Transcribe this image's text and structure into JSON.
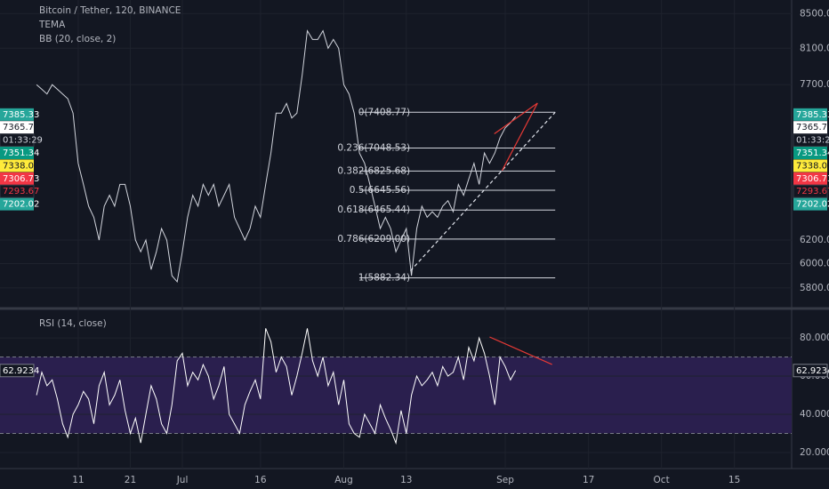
{
  "chart_data": [
    {
      "type": "line",
      "title": "Bitcoin / Tether, 120, BINANCE",
      "indicators": [
        "TEMA",
        "BB (20, close, 2)"
      ],
      "log_scale": true,
      "grid": true,
      "xlim": [
        1.3,
        147
      ],
      "ylim": [
        5650,
        8610
      ],
      "xticks": [
        {
          "value": 10,
          "label": "11"
        },
        {
          "value": 20,
          "label": "21"
        },
        {
          "value": 30,
          "label": "Jul"
        },
        {
          "value": 45,
          "label": "16"
        },
        {
          "value": 61,
          "label": "Aug"
        },
        {
          "value": 73,
          "label": "13"
        },
        {
          "value": 92,
          "label": "Sep"
        },
        {
          "value": 108,
          "label": "17"
        },
        {
          "value": 122,
          "label": "Oct"
        },
        {
          "value": 136,
          "label": "15"
        }
      ],
      "yticks": [
        {
          "value": 8500,
          "label": "8500.00"
        },
        {
          "value": 8100,
          "label": "8100.00"
        },
        {
          "value": 7700,
          "label": "7700.00"
        },
        {
          "value": 6200,
          "label": "6200.00"
        },
        {
          "value": 6000,
          "label": "6000.00"
        },
        {
          "value": 5800,
          "label": "5800.00"
        }
      ],
      "x": [
        2,
        3,
        4,
        5,
        6,
        7,
        8,
        9,
        10,
        11,
        12,
        13,
        14,
        15,
        16,
        17,
        18,
        19,
        20,
        21,
        22,
        23,
        24,
        25,
        26,
        27,
        28,
        29,
        30,
        31,
        32,
        33,
        34,
        35,
        36,
        37,
        38,
        39,
        40,
        41,
        42,
        43,
        44,
        45,
        46,
        47,
        48,
        49,
        50,
        51,
        52,
        53,
        54,
        55,
        56,
        57,
        58,
        59,
        60,
        61,
        62,
        63,
        64,
        65,
        66,
        67,
        68,
        69,
        70,
        71,
        72,
        73,
        74,
        75,
        76,
        77,
        78,
        79,
        80,
        81,
        82,
        83,
        84,
        85,
        86,
        87,
        88,
        89,
        90,
        91,
        92,
        93,
        94
      ],
      "series": [
        {
          "name": "Bitcoin / Tether",
          "color": "#d1d4dc",
          "values": [
            7700,
            7650,
            7600,
            7700,
            7650,
            7600,
            7550,
            7400,
            6900,
            6700,
            6500,
            6400,
            6200,
            6500,
            6600,
            6500,
            6700,
            6700,
            6500,
            6200,
            6100,
            6200,
            5950,
            6100,
            6300,
            6200,
            5900,
            5850,
            6100,
            6400,
            6600,
            6500,
            6700,
            6600,
            6700,
            6500,
            6600,
            6700,
            6400,
            6300,
            6200,
            6300,
            6500,
            6400,
            6700,
            7000,
            7400,
            7400,
            7500,
            7350,
            7400,
            7800,
            8300,
            8200,
            8200,
            8300,
            8100,
            8200,
            8100,
            7700,
            7600,
            7400,
            7000,
            6900,
            6700,
            6500,
            6300,
            6400,
            6300,
            6100,
            6200,
            6300,
            5900,
            6300,
            6500,
            6400,
            6450,
            6400,
            6500,
            6550,
            6450,
            6700,
            6600,
            6750,
            6900,
            6700,
            7000,
            6900,
            7000,
            7150,
            7250,
            7300,
            7365.72
          ]
        }
      ],
      "fib_levels": [
        {
          "value": 7408.77,
          "label": "0(7408.77)"
        },
        {
          "value": 7048.53,
          "label": "0.236(7048.53)"
        },
        {
          "value": 6825.68,
          "label": "0.382(6825.68)"
        },
        {
          "value": 6645.56,
          "label": "0.5(6645.56)"
        },
        {
          "value": 6465.44,
          "label": "0.618(6465.44)"
        },
        {
          "value": 6209.0,
          "label": "0.786(6209.00)"
        },
        {
          "value": 5882.34,
          "label": "1(5882.34)"
        }
      ],
      "fib_x": [
        64,
        101.6
      ],
      "trendlines": [
        {
          "color": "#e0e3eb",
          "dashed": true,
          "x": [
            73.8,
            101.6
          ],
          "y": [
            5940,
            7409
          ]
        },
        {
          "color": "#e53935",
          "dashed": false,
          "x": [
            89.9,
            98.2
          ],
          "y": [
            7190,
            7504
          ]
        },
        {
          "color": "#e53935",
          "dashed": false,
          "x": [
            91.4,
            98.2
          ],
          "y": [
            6831,
            7504
          ]
        }
      ],
      "price_labels": [
        {
          "value": 7385.33,
          "color": "#26a69a"
        },
        {
          "value": 7365.72,
          "color": "#ffffff"
        },
        {
          "value": 7351.34,
          "color": "#089981"
        },
        {
          "value": 7338.02,
          "color": "#ffeb3b"
        },
        {
          "value": 7306.73,
          "color": "#f23645"
        },
        {
          "value": 7293.67,
          "color": "#131722"
        },
        {
          "value": 7202.02,
          "color": "#26a69a"
        }
      ],
      "countdown": "01:33:29"
    },
    {
      "type": "line",
      "title": "RSI (14, close)",
      "xlim": [
        1.3,
        147
      ],
      "ylim": [
        11.6,
        94
      ],
      "yticks": [
        {
          "value": 20,
          "label": "20.0000"
        },
        {
          "value": 40,
          "label": "40.0000"
        },
        {
          "value": 60,
          "label": "60.0000"
        },
        {
          "value": 80,
          "label": "80.0000"
        }
      ],
      "band": [
        30,
        70
      ],
      "band_color": "#2a1f4e",
      "x": [
        2,
        3,
        4,
        5,
        6,
        7,
        8,
        9,
        10,
        11,
        12,
        13,
        14,
        15,
        16,
        17,
        18,
        19,
        20,
        21,
        22,
        23,
        24,
        25,
        26,
        27,
        28,
        29,
        30,
        31,
        32,
        33,
        34,
        35,
        36,
        37,
        38,
        39,
        40,
        41,
        42,
        43,
        44,
        45,
        46,
        47,
        48,
        49,
        50,
        51,
        52,
        53,
        54,
        55,
        56,
        57,
        58,
        59,
        60,
        61,
        62,
        63,
        64,
        65,
        66,
        67,
        68,
        69,
        70,
        71,
        72,
        73,
        74,
        75,
        76,
        77,
        78,
        79,
        80,
        81,
        82,
        83,
        84,
        85,
        86,
        87,
        88,
        89,
        90,
        91,
        92,
        93,
        94
      ],
      "series": [
        {
          "name": "RSI",
          "color": "#ffffff",
          "values": [
            50,
            62,
            55,
            58,
            48,
            35,
            28,
            40,
            45,
            52,
            48,
            35,
            55,
            62,
            45,
            50,
            58,
            42,
            30,
            38,
            25,
            40,
            55,
            48,
            35,
            30,
            45,
            68,
            72,
            55,
            62,
            58,
            66,
            60,
            48,
            55,
            65,
            40,
            35,
            30,
            45,
            52,
            58,
            48,
            85,
            78,
            62,
            70,
            65,
            50,
            60,
            72,
            85,
            68,
            60,
            70,
            55,
            62,
            45,
            58,
            35,
            30,
            28,
            40,
            35,
            30,
            45,
            38,
            32,
            25,
            42,
            30,
            50,
            60,
            55,
            58,
            62,
            55,
            65,
            60,
            62,
            70,
            58,
            75,
            68,
            80,
            72,
            60,
            45,
            70,
            65,
            58,
            62.9234
          ]
        }
      ],
      "current": 62.9234,
      "trendlines": [
        {
          "color": "#e53935",
          "dashed": false,
          "x": [
            89,
            101
          ],
          "y": [
            80.5,
            66.1
          ]
        }
      ]
    }
  ]
}
